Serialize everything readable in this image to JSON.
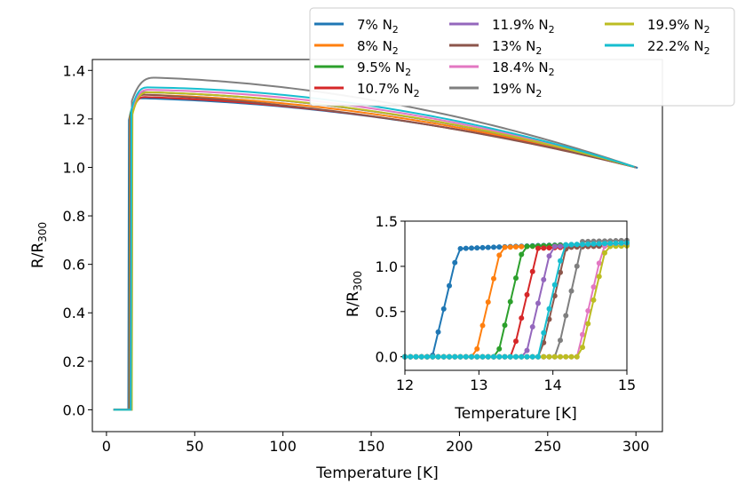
{
  "chart_data": [
    {
      "type": "line",
      "name": "main",
      "xlabel": "Temperature [K]",
      "ylabel_main": "R/R",
      "ylabel_sub": "300",
      "xlim": [
        -8,
        315
      ],
      "ylim": [
        -0.09,
        1.445
      ],
      "xticks": [
        0,
        50,
        100,
        150,
        200,
        250,
        300
      ],
      "yticks": [
        0.0,
        0.2,
        0.4,
        0.6,
        0.8,
        1.0,
        1.2,
        1.4
      ],
      "xtick_labels": [
        "0",
        "50",
        "100",
        "150",
        "200",
        "250",
        "300"
      ],
      "ytick_labels": [
        "0.0",
        "0.2",
        "0.4",
        "0.6",
        "0.8",
        "1.0",
        "1.2",
        "1.4"
      ],
      "series": [
        {
          "name": "7%",
          "color": "#1f77b4",
          "tc": 12.62,
          "peak": 1.285,
          "peakT": 20,
          "mid": 1.2
        },
        {
          "name": "8%",
          "color": "#ff7f0e",
          "tc": 13.2,
          "peak": 1.3,
          "peakT": 22,
          "mid": 1.21
        },
        {
          "name": "9.5%",
          "color": "#2ca02c",
          "tc": 13.5,
          "peak": 1.31,
          "peakT": 22,
          "mid": 1.22
        },
        {
          "name": "10.7%",
          "color": "#d62728",
          "tc": 13.7,
          "peak": 1.29,
          "peakT": 22,
          "mid": 1.2
        },
        {
          "name": "11.9%",
          "color": "#9467bd",
          "tc": 13.88,
          "peak": 1.31,
          "peakT": 22,
          "mid": 1.22
        },
        {
          "name": "13%",
          "color": "#8c564b",
          "tc": 14.08,
          "peak": 1.3,
          "peakT": 22,
          "mid": 1.2
        },
        {
          "name": "18.4%",
          "color": "#e377c2",
          "tc": 14.58,
          "peak": 1.32,
          "peakT": 24,
          "mid": 1.23
        },
        {
          "name": "19%",
          "color": "#7f7f7f",
          "tc": 14.3,
          "peak": 1.37,
          "peakT": 28,
          "mid": 1.26
        },
        {
          "name": "19.9%",
          "color": "#bcbd22",
          "tc": 14.62,
          "peak": 1.31,
          "peakT": 24,
          "mid": 1.22
        },
        {
          "name": "22.2%",
          "color": "#17becf",
          "tc": 14.05,
          "peak": 1.33,
          "peakT": 24,
          "mid": 1.24
        }
      ]
    },
    {
      "type": "line",
      "name": "inset",
      "xlabel": "Temperature [K]",
      "ylabel_main": "R/R",
      "ylabel_sub": "300",
      "xlim": [
        12,
        15
      ],
      "ylim": [
        -0.15,
        1.5
      ],
      "xticks": [
        12,
        13,
        14,
        15
      ],
      "yticks": [
        0.0,
        0.5,
        1.0,
        1.5
      ],
      "xtick_labels": [
        "12",
        "13",
        "14",
        "15"
      ],
      "ytick_labels": [
        "0.0",
        "0.5",
        "1.0",
        "1.5"
      ]
    }
  ],
  "legend": {
    "placement": "top-right",
    "subscript": "2",
    "items": [
      {
        "label": "7% N",
        "color": "#1f77b4"
      },
      {
        "label": "8% N",
        "color": "#ff7f0e"
      },
      {
        "label": "9.5% N",
        "color": "#2ca02c"
      },
      {
        "label": "10.7% N",
        "color": "#d62728"
      },
      {
        "label": "11.9% N",
        "color": "#9467bd"
      },
      {
        "label": "13% N",
        "color": "#8c564b"
      },
      {
        "label": "18.4% N",
        "color": "#e377c2"
      },
      {
        "label": "19% N",
        "color": "#7f7f7f"
      },
      {
        "label": "19.9% N",
        "color": "#bcbd22"
      },
      {
        "label": "22.2% N",
        "color": "#17becf"
      }
    ]
  }
}
